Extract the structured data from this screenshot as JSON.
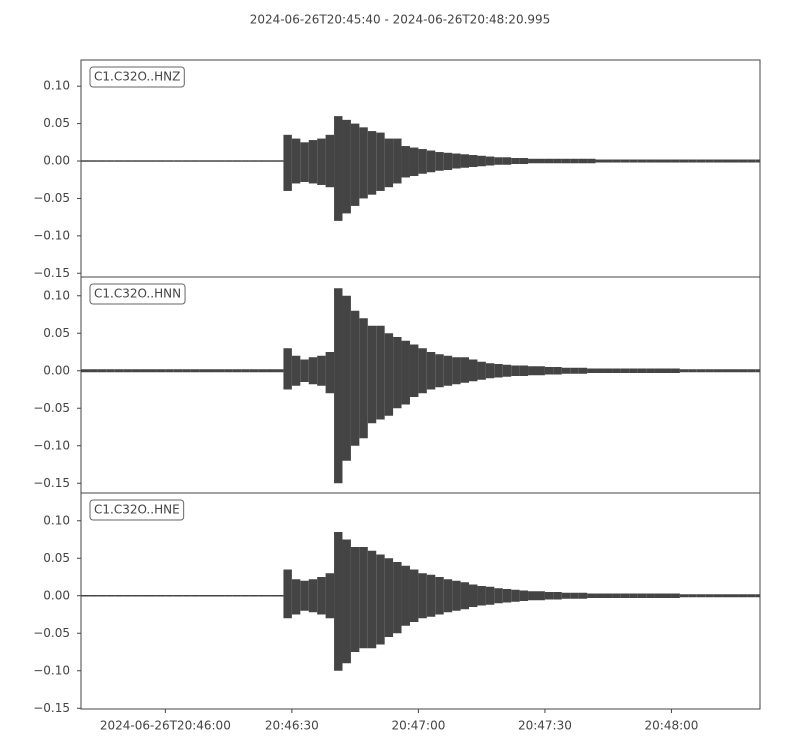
{
  "chart_data": [
    {
      "type": "envelope",
      "title": "2024-06-26T20:45:40  -  2024-06-26T20:48:20.995",
      "x": [
        0,
        2,
        4,
        6,
        8,
        10,
        12,
        14,
        16,
        18,
        20,
        22,
        24,
        26,
        28,
        30,
        32,
        34,
        36,
        38,
        40,
        42,
        44,
        46,
        48,
        50,
        52,
        54,
        56,
        58,
        60,
        62,
        64,
        66,
        68,
        70,
        72,
        74,
        76,
        78,
        80,
        82,
        84,
        86,
        88,
        90,
        92,
        94,
        96,
        98,
        100,
        102,
        104,
        106,
        108,
        110,
        112,
        114,
        116,
        118,
        120,
        122,
        124,
        126,
        128,
        130,
        132,
        134,
        136,
        138,
        140,
        142,
        144,
        146,
        148,
        150,
        152,
        154,
        156,
        158,
        160
      ],
      "xlim": [
        0,
        160.995
      ],
      "ylim": [
        -0.155,
        0.135
      ],
      "yticks": [
        {
          "value": 0.1,
          "label": "0.10"
        },
        {
          "value": 0.05,
          "label": "0.05"
        },
        {
          "value": 0,
          "label": "0.00"
        },
        {
          "value": -0.05,
          "label": "−0.05"
        },
        {
          "value": -0.1,
          "label": "−0.10"
        },
        {
          "value": -0.15,
          "label": "−0.15"
        }
      ],
      "series": [
        {
          "name": "C1.C32O..HNZ",
          "color": "#444444",
          "max": [
            0.001,
            0.001,
            0.001,
            0.001,
            0.001,
            0.001,
            0.001,
            0.001,
            0.001,
            0.001,
            0.001,
            0.001,
            0.001,
            0.001,
            0.001,
            0.001,
            0.001,
            0.001,
            0.001,
            0.001,
            0.001,
            0.001,
            0.001,
            0.001,
            0.035,
            0.03,
            0.025,
            0.028,
            0.03,
            0.035,
            0.06,
            0.055,
            0.05,
            0.045,
            0.04,
            0.038,
            0.03,
            0.03,
            0.02,
            0.018,
            0.016,
            0.014,
            0.012,
            0.011,
            0.01,
            0.009,
            0.008,
            0.007,
            0.006,
            0.005,
            0.005,
            0.004,
            0.004,
            0.003,
            0.003,
            0.003,
            0.003,
            0.003,
            0.003,
            0.003,
            0.003,
            0.002,
            0.002,
            0.002,
            0.002,
            0.002,
            0.002,
            0.002,
            0.002,
            0.002,
            0.002,
            0.002,
            0.002,
            0.002,
            0.002,
            0.002,
            0.002,
            0.002,
            0.002,
            0.002,
            0.002
          ],
          "min": [
            -0.001,
            -0.001,
            -0.001,
            -0.001,
            -0.001,
            -0.001,
            -0.001,
            -0.001,
            -0.001,
            -0.001,
            -0.001,
            -0.001,
            -0.001,
            -0.001,
            -0.001,
            -0.001,
            -0.001,
            -0.001,
            -0.001,
            -0.001,
            -0.001,
            -0.001,
            -0.001,
            -0.001,
            -0.04,
            -0.03,
            -0.028,
            -0.03,
            -0.032,
            -0.035,
            -0.08,
            -0.07,
            -0.06,
            -0.05,
            -0.045,
            -0.04,
            -0.035,
            -0.03,
            -0.022,
            -0.02,
            -0.017,
            -0.015,
            -0.013,
            -0.012,
            -0.01,
            -0.009,
            -0.008,
            -0.007,
            -0.006,
            -0.005,
            -0.005,
            -0.004,
            -0.004,
            -0.003,
            -0.003,
            -0.003,
            -0.003,
            -0.003,
            -0.003,
            -0.003,
            -0.003,
            -0.002,
            -0.002,
            -0.002,
            -0.002,
            -0.002,
            -0.002,
            -0.002,
            -0.002,
            -0.002,
            -0.002,
            -0.002,
            -0.002,
            -0.002,
            -0.002,
            -0.002,
            -0.002,
            -0.002,
            -0.002,
            -0.002,
            -0.002
          ]
        }
      ]
    },
    {
      "type": "envelope",
      "x": [
        0,
        2,
        4,
        6,
        8,
        10,
        12,
        14,
        16,
        18,
        20,
        22,
        24,
        26,
        28,
        30,
        32,
        34,
        36,
        38,
        40,
        42,
        44,
        46,
        48,
        50,
        52,
        54,
        56,
        58,
        60,
        62,
        64,
        66,
        68,
        70,
        72,
        74,
        76,
        78,
        80,
        82,
        84,
        86,
        88,
        90,
        92,
        94,
        96,
        98,
        100,
        102,
        104,
        106,
        108,
        110,
        112,
        114,
        116,
        118,
        120,
        122,
        124,
        126,
        128,
        130,
        132,
        134,
        136,
        138,
        140,
        142,
        144,
        146,
        148,
        150,
        152,
        154,
        156,
        158,
        160
      ],
      "xlim": [
        0,
        160.995
      ],
      "ylim": [
        -0.163,
        0.125
      ],
      "yticks": [
        {
          "value": 0.1,
          "label": "0.10"
        },
        {
          "value": 0.05,
          "label": "0.05"
        },
        {
          "value": 0,
          "label": "0.00"
        },
        {
          "value": -0.05,
          "label": "−0.05"
        },
        {
          "value": -0.1,
          "label": "−0.10"
        },
        {
          "value": -0.15,
          "label": "−0.15"
        }
      ],
      "series": [
        {
          "name": "C1.C32O..HNN",
          "color": "#444444",
          "max": [
            0.002,
            0.002,
            0.002,
            0.002,
            0.002,
            0.002,
            0.002,
            0.002,
            0.002,
            0.002,
            0.002,
            0.002,
            0.002,
            0.002,
            0.002,
            0.002,
            0.002,
            0.002,
            0.002,
            0.002,
            0.002,
            0.002,
            0.002,
            0.002,
            0.03,
            0.02,
            0.015,
            0.018,
            0.02,
            0.025,
            0.11,
            0.1,
            0.08,
            0.07,
            0.06,
            0.06,
            0.05,
            0.045,
            0.04,
            0.035,
            0.03,
            0.025,
            0.022,
            0.02,
            0.018,
            0.018,
            0.015,
            0.012,
            0.01,
            0.009,
            0.008,
            0.007,
            0.007,
            0.006,
            0.006,
            0.005,
            0.005,
            0.004,
            0.004,
            0.004,
            0.003,
            0.003,
            0.003,
            0.003,
            0.003,
            0.003,
            0.003,
            0.003,
            0.003,
            0.003,
            0.003,
            0.002,
            0.002,
            0.002,
            0.002,
            0.002,
            0.002,
            0.002,
            0.002,
            0.002,
            0.002
          ],
          "min": [
            -0.002,
            -0.002,
            -0.002,
            -0.002,
            -0.002,
            -0.002,
            -0.002,
            -0.002,
            -0.002,
            -0.002,
            -0.002,
            -0.002,
            -0.002,
            -0.002,
            -0.002,
            -0.002,
            -0.002,
            -0.002,
            -0.002,
            -0.002,
            -0.002,
            -0.002,
            -0.002,
            -0.002,
            -0.025,
            -0.02,
            -0.015,
            -0.018,
            -0.02,
            -0.03,
            -0.15,
            -0.12,
            -0.1,
            -0.09,
            -0.07,
            -0.065,
            -0.06,
            -0.05,
            -0.045,
            -0.035,
            -0.03,
            -0.025,
            -0.022,
            -0.02,
            -0.018,
            -0.016,
            -0.014,
            -0.012,
            -0.01,
            -0.009,
            -0.008,
            -0.007,
            -0.007,
            -0.006,
            -0.006,
            -0.005,
            -0.005,
            -0.004,
            -0.004,
            -0.004,
            -0.003,
            -0.003,
            -0.003,
            -0.003,
            -0.003,
            -0.003,
            -0.003,
            -0.003,
            -0.003,
            -0.003,
            -0.003,
            -0.002,
            -0.002,
            -0.002,
            -0.002,
            -0.002,
            -0.002,
            -0.002,
            -0.002,
            -0.002,
            -0.002
          ]
        }
      ]
    },
    {
      "type": "envelope",
      "x": [
        0,
        2,
        4,
        6,
        8,
        10,
        12,
        14,
        16,
        18,
        20,
        22,
        24,
        26,
        28,
        30,
        32,
        34,
        36,
        38,
        40,
        42,
        44,
        46,
        48,
        50,
        52,
        54,
        56,
        58,
        60,
        62,
        64,
        66,
        68,
        70,
        72,
        74,
        76,
        78,
        80,
        82,
        84,
        86,
        88,
        90,
        92,
        94,
        96,
        98,
        100,
        102,
        104,
        106,
        108,
        110,
        112,
        114,
        116,
        118,
        120,
        122,
        124,
        126,
        128,
        130,
        132,
        134,
        136,
        138,
        140,
        142,
        144,
        146,
        148,
        150,
        152,
        154,
        156,
        158,
        160
      ],
      "xlim": [
        0,
        160.995
      ],
      "ylim": [
        -0.151,
        0.137
      ],
      "xticks": [
        {
          "value": 20,
          "label": "2024-06-26T20:46:00"
        },
        {
          "value": 50,
          "label": "20:46:30"
        },
        {
          "value": 80,
          "label": "20:47:00"
        },
        {
          "value": 110,
          "label": "20:47:30"
        },
        {
          "value": 140,
          "label": "20:48:00"
        }
      ],
      "yticks": [
        {
          "value": 0.1,
          "label": "0.10"
        },
        {
          "value": 0.05,
          "label": "0.05"
        },
        {
          "value": 0,
          "label": "0.00"
        },
        {
          "value": -0.05,
          "label": "−0.05"
        },
        {
          "value": -0.1,
          "label": "−0.10"
        },
        {
          "value": -0.15,
          "label": "−0.15"
        }
      ],
      "series": [
        {
          "name": "C1.C32O..HNE",
          "color": "#444444",
          "max": [
            0.001,
            0.001,
            0.001,
            0.001,
            0.001,
            0.001,
            0.001,
            0.001,
            0.001,
            0.001,
            0.001,
            0.001,
            0.001,
            0.001,
            0.001,
            0.001,
            0.001,
            0.001,
            0.001,
            0.001,
            0.001,
            0.001,
            0.001,
            0.001,
            0.035,
            0.022,
            0.02,
            0.022,
            0.025,
            0.03,
            0.085,
            0.075,
            0.065,
            0.065,
            0.06,
            0.055,
            0.05,
            0.045,
            0.04,
            0.035,
            0.03,
            0.028,
            0.025,
            0.022,
            0.02,
            0.018,
            0.015,
            0.013,
            0.012,
            0.01,
            0.009,
            0.008,
            0.007,
            0.006,
            0.006,
            0.005,
            0.005,
            0.004,
            0.004,
            0.004,
            0.003,
            0.003,
            0.003,
            0.003,
            0.003,
            0.003,
            0.003,
            0.003,
            0.003,
            0.003,
            0.003,
            0.002,
            0.002,
            0.002,
            0.002,
            0.002,
            0.002,
            0.002,
            0.002,
            0.002,
            0.002
          ],
          "min": [
            -0.001,
            -0.001,
            -0.001,
            -0.001,
            -0.001,
            -0.001,
            -0.001,
            -0.001,
            -0.001,
            -0.001,
            -0.001,
            -0.001,
            -0.001,
            -0.001,
            -0.001,
            -0.001,
            -0.001,
            -0.001,
            -0.001,
            -0.001,
            -0.001,
            -0.001,
            -0.001,
            -0.001,
            -0.03,
            -0.025,
            -0.02,
            -0.022,
            -0.025,
            -0.03,
            -0.1,
            -0.09,
            -0.075,
            -0.07,
            -0.07,
            -0.065,
            -0.055,
            -0.05,
            -0.04,
            -0.035,
            -0.03,
            -0.028,
            -0.025,
            -0.022,
            -0.02,
            -0.018,
            -0.015,
            -0.013,
            -0.012,
            -0.01,
            -0.009,
            -0.008,
            -0.007,
            -0.006,
            -0.006,
            -0.005,
            -0.005,
            -0.004,
            -0.004,
            -0.004,
            -0.003,
            -0.003,
            -0.003,
            -0.003,
            -0.003,
            -0.003,
            -0.003,
            -0.003,
            -0.003,
            -0.003,
            -0.003,
            -0.002,
            -0.002,
            -0.002,
            -0.002,
            -0.002,
            -0.002,
            -0.002,
            -0.002,
            -0.002,
            -0.002
          ]
        }
      ]
    }
  ]
}
